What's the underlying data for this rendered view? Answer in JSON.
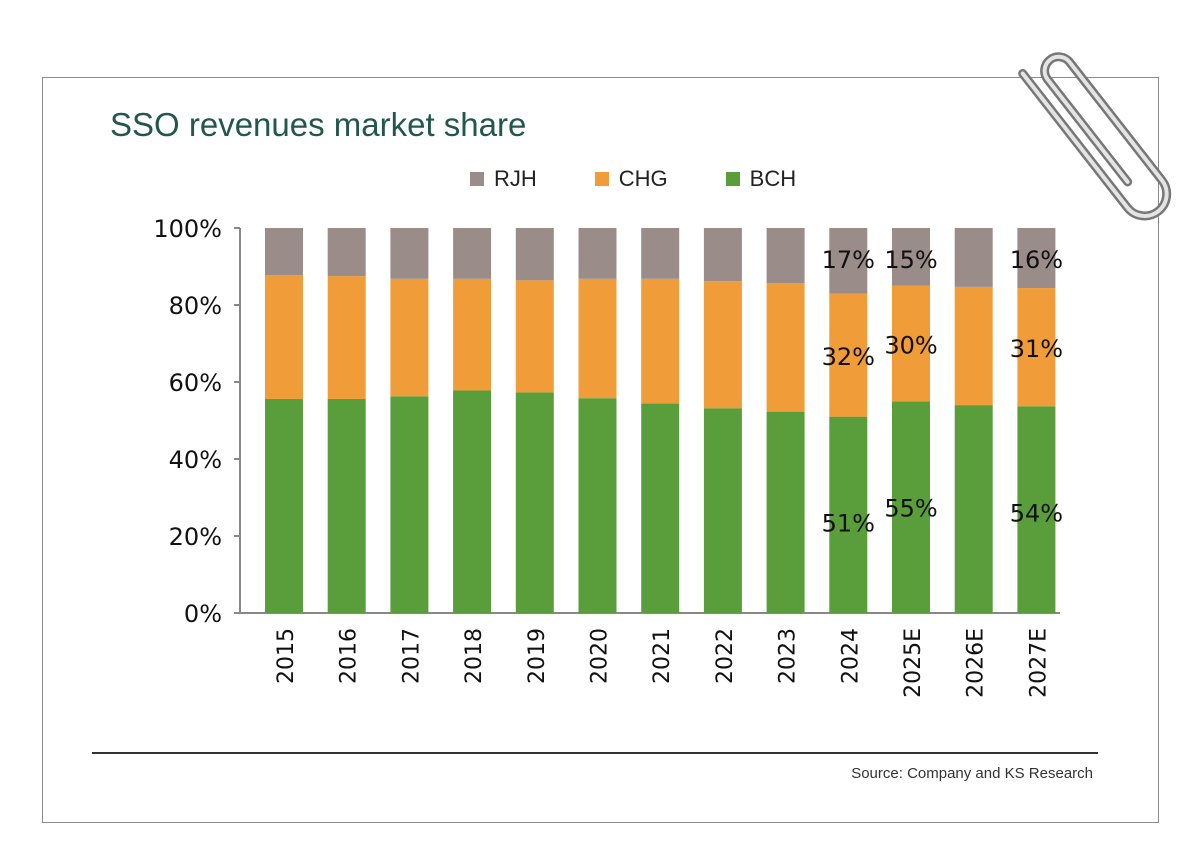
{
  "chart_data": {
    "type": "bar",
    "stacked": true,
    "title": "SSO revenues market share",
    "categories": [
      "2015",
      "2016",
      "2017",
      "2018",
      "2019",
      "2020",
      "2021",
      "2022",
      "2023",
      "2024",
      "2025E",
      "2026E",
      "2027E"
    ],
    "series": [
      {
        "name": "BCH",
        "color": "#5a9e3c",
        "values": [
          55.6,
          55.6,
          56.3,
          57.8,
          57.3,
          55.8,
          54.4,
          53.2,
          52.3,
          51,
          55,
          54,
          53.7
        ]
      },
      {
        "name": "CHG",
        "color": "#f09c38",
        "values": [
          32.2,
          31.9,
          30.5,
          29.0,
          29.1,
          31.0,
          32.4,
          33.0,
          33.4,
          32,
          30,
          30.7,
          30.7
        ]
      },
      {
        "name": "RJH",
        "color": "#9a8c88",
        "values": [
          12.2,
          12.5,
          13.2,
          13.2,
          13.6,
          13.2,
          13.2,
          13.8,
          14.3,
          17,
          15,
          15.3,
          15.6
        ]
      }
    ],
    "data_labels": {
      "2024": {
        "BCH": "51%",
        "CHG": "32%",
        "RJH": "17%"
      },
      "2025E": {
        "BCH": "55%",
        "CHG": "30%",
        "RJH": "15%"
      },
      "2027E": {
        "BCH": "54%",
        "CHG": "31%",
        "RJH": "16%"
      }
    },
    "legend_order": [
      "RJH",
      "CHG",
      "BCH"
    ],
    "legend_position": "top",
    "ylim": [
      0,
      100
    ],
    "yticks": [
      "0%",
      "20%",
      "40%",
      "60%",
      "80%",
      "100%"
    ],
    "xlabel": "",
    "ylabel": "",
    "grid": false
  },
  "source": "Source: Company and KS Research"
}
